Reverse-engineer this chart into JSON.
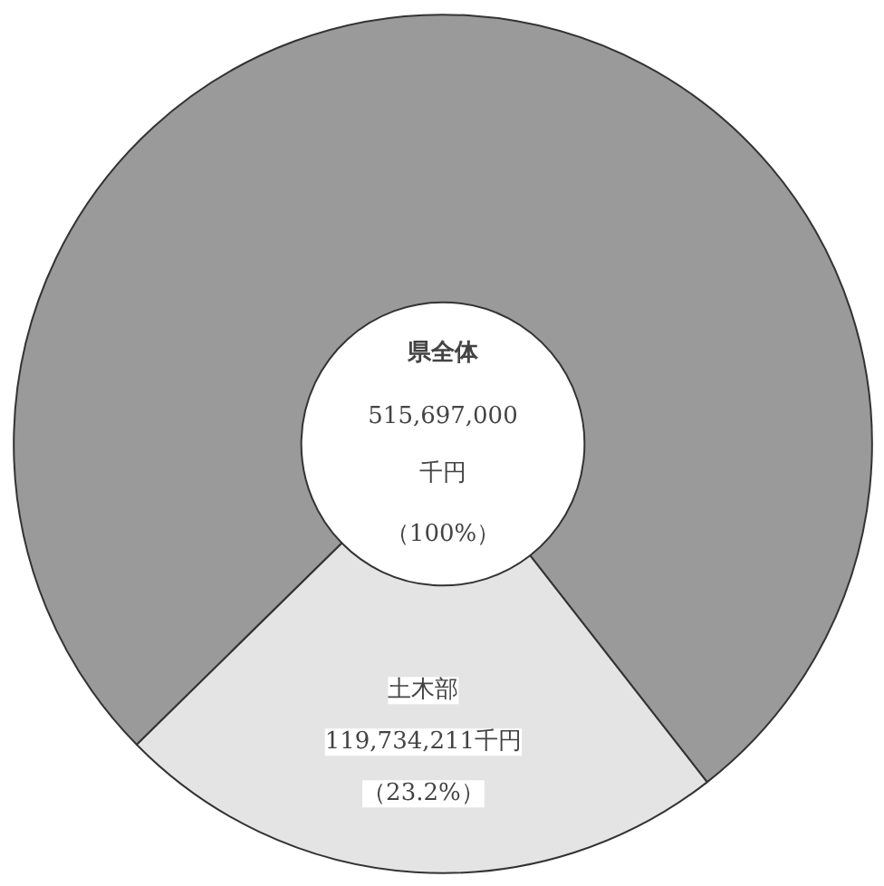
{
  "chart_data": {
    "type": "donut",
    "categories": [
      null,
      "土木部"
    ],
    "values": [
      76.8,
      23.2
    ],
    "colors": [
      "#9a9a9a",
      "#e4e4e4"
    ],
    "value_labels": [
      null,
      "119,734,211千円（23.2%）"
    ],
    "annotations": [
      "県全体",
      "515,697,000",
      "千円",
      "（100%）"
    ]
  }
}
